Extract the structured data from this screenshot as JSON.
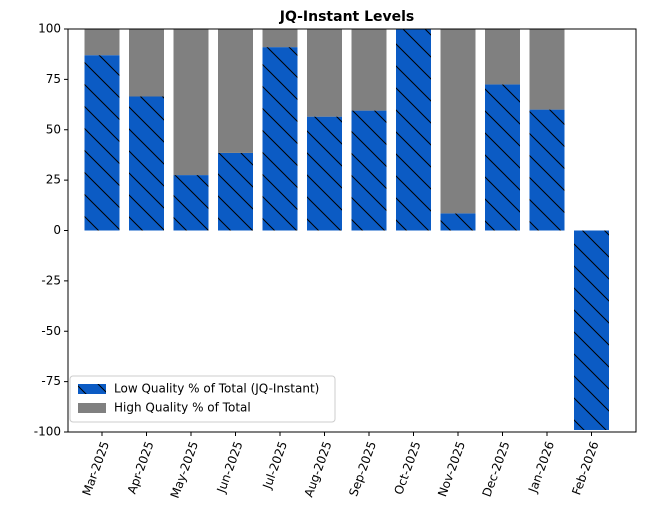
{
  "chart_data": {
    "type": "stacked_bar",
    "title": "JQ-Instant Levels",
    "categories": [
      "Mar-2025",
      "Apr-2025",
      "May-2025",
      "Jun-2025",
      "Jul-2025",
      "Aug-2025",
      "Sep-2025",
      "Oct-2025",
      "Nov-2025",
      "Dec-2025",
      "Jan-2026",
      "Feb-2026"
    ],
    "series": [
      {
        "name": "Low Quality % of Total (JQ-Instant)",
        "color": "#0b5bc4",
        "hatch": true,
        "values": [
          87,
          66.5,
          27.5,
          38.5,
          91,
          56.5,
          59.5,
          100,
          8.5,
          72.5,
          60,
          -99
        ]
      },
      {
        "name": "High Quality % of Total",
        "color": "#808080",
        "hatch": false,
        "values": [
          13,
          33.5,
          72.5,
          61.5,
          9,
          43.5,
          40.5,
          0,
          91.5,
          27.5,
          40,
          0
        ]
      }
    ],
    "ylim": [
      -100,
      100
    ],
    "yticks": [
      -100,
      -75,
      -50,
      -25,
      0,
      25,
      50,
      75,
      100
    ],
    "legend": "lower left"
  }
}
